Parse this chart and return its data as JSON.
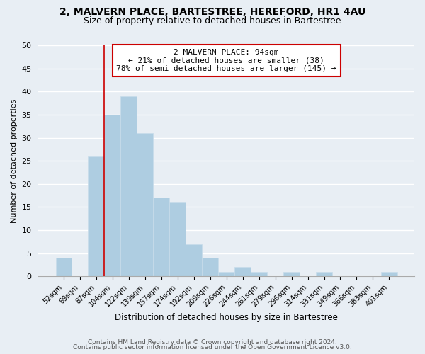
{
  "title": "2, MALVERN PLACE, BARTESTREE, HEREFORD, HR1 4AU",
  "subtitle": "Size of property relative to detached houses in Bartestree",
  "xlabel": "Distribution of detached houses by size in Bartestree",
  "ylabel": "Number of detached properties",
  "bar_labels": [
    "52sqm",
    "69sqm",
    "87sqm",
    "104sqm",
    "122sqm",
    "139sqm",
    "157sqm",
    "174sqm",
    "192sqm",
    "209sqm",
    "226sqm",
    "244sqm",
    "261sqm",
    "279sqm",
    "296sqm",
    "314sqm",
    "331sqm",
    "349sqm",
    "366sqm",
    "383sqm",
    "401sqm"
  ],
  "bar_heights": [
    4,
    0,
    26,
    35,
    39,
    31,
    17,
    16,
    7,
    4,
    1,
    2,
    1,
    0,
    1,
    0,
    1,
    0,
    0,
    0,
    1
  ],
  "bar_color": "#aecde1",
  "bar_edge_color": "#c8dcea",
  "vline_color": "#cc0000",
  "vline_x_index": 3,
  "ylim": [
    0,
    50
  ],
  "yticks": [
    0,
    5,
    10,
    15,
    20,
    25,
    30,
    35,
    40,
    45,
    50
  ],
  "annotation_title": "2 MALVERN PLACE: 94sqm",
  "annotation_line1": "← 21% of detached houses are smaller (38)",
  "annotation_line2": "78% of semi-detached houses are larger (145) →",
  "annotation_box_color": "#ffffff",
  "annotation_box_edge": "#cc0000",
  "footer_line1": "Contains HM Land Registry data © Crown copyright and database right 2024.",
  "footer_line2": "Contains public sector information licensed under the Open Government Licence v3.0.",
  "background_color": "#e8eef4",
  "plot_background": "#e8eef4",
  "grid_color": "#ffffff",
  "title_fontsize": 10,
  "subtitle_fontsize": 9
}
